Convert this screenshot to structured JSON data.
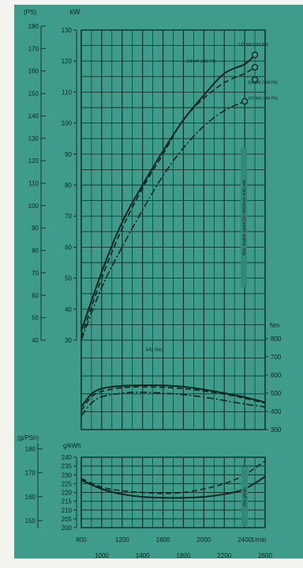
{
  "colors": {
    "background": "#3f9b8a",
    "background_dark": "#348877",
    "grid": "#14352c",
    "curve": "#0e2520",
    "text": "#0e2520",
    "margin": "#f3f3ef"
  },
  "labels": {
    "ps_unit": "(PS)",
    "kw_unit": "kW",
    "nm_unit": "Nm",
    "gkwh_unit": "g/kWh",
    "gpsh_unit": "(g/PSh)",
    "rpm_unit": "1/min",
    "vertical_note": "Max. engine speed (for reference only) see",
    "bsfc_note": "220 g/kWh",
    "torque_peak": "543 Nm",
    "power_1": "121 kW (165 PS)",
    "power_2": "118 kW (160 PS)",
    "power_3": "116 kW (158 PS)",
    "power_4": "107 kW (146 PS)"
  },
  "chart_data": [
    {
      "type": "line",
      "title": "Power",
      "xlabel": "1/min",
      "ylabel": "kW",
      "xlim": [
        800,
        2600
      ],
      "ylim": [
        30,
        130
      ],
      "x_ticks_top": [
        800,
        1200,
        1600,
        2000,
        2400
      ],
      "x_ticks_bottom": [
        1000,
        1400,
        1800,
        2200,
        2600
      ],
      "y_ticks": [
        30,
        40,
        50,
        60,
        70,
        80,
        90,
        100,
        110,
        120,
        130
      ],
      "secondary_axis": {
        "label": "(PS)",
        "ticks": [
          40,
          50,
          60,
          70,
          80,
          90,
          100,
          110,
          120,
          130,
          140,
          150,
          160,
          170,
          180
        ]
      },
      "grid": true,
      "series": [
        {
          "name": "121 kW (165 PS)",
          "style": "solid",
          "x": [
            800,
            1000,
            1200,
            1400,
            1600,
            1800,
            2000,
            2200,
            2400,
            2500
          ],
          "y": [
            33,
            52,
            68,
            80,
            91,
            101,
            109,
            116,
            119,
            122
          ]
        },
        {
          "name": "118 kW (160 PS)",
          "style": "dashed",
          "x": [
            800,
            1000,
            1200,
            1400,
            1600,
            1800,
            2000,
            2200,
            2400,
            2500
          ],
          "y": [
            31,
            50,
            66,
            79,
            90,
            101,
            108,
            113,
            116,
            118
          ]
        },
        {
          "name": "107 kW (146 PS)",
          "style": "dash-dot",
          "x": [
            800,
            1000,
            1200,
            1400,
            1600,
            1800,
            2000,
            2200,
            2400
          ],
          "y": [
            30,
            47,
            60,
            72,
            83,
            92,
            99,
            104,
            107
          ]
        }
      ]
    },
    {
      "type": "line",
      "title": "Torque",
      "ylabel": "Nm",
      "xlim": [
        800,
        2600
      ],
      "ylim": [
        300,
        800
      ],
      "y_ticks": [
        300,
        400,
        500,
        600,
        700,
        800
      ],
      "grid": true,
      "series": [
        {
          "name": "543 Nm",
          "style": "solid",
          "x": [
            800,
            900,
            1000,
            1200,
            1400,
            1600,
            1800,
            2000,
            2200,
            2400,
            2600
          ],
          "y": [
            425,
            495,
            525,
            540,
            543,
            542,
            535,
            520,
            500,
            478,
            450
          ]
        },
        {
          "name": "",
          "style": "dashed",
          "x": [
            800,
            900,
            1000,
            1200,
            1400,
            1600,
            1800,
            2000,
            2200,
            2400,
            2600
          ],
          "y": [
            405,
            480,
            510,
            530,
            535,
            532,
            525,
            512,
            495,
            472,
            445
          ]
        },
        {
          "name": "",
          "style": "dash-dot",
          "x": [
            800,
            900,
            1000,
            1200,
            1400,
            1600,
            1800,
            2000,
            2200,
            2400,
            2600
          ],
          "y": [
            375,
            445,
            480,
            500,
            505,
            500,
            492,
            478,
            460,
            440,
            425
          ]
        }
      ]
    },
    {
      "type": "line",
      "title": "Fuel consumption",
      "ylabel": "g/kWh",
      "xlim": [
        800,
        2600
      ],
      "ylim": [
        200,
        240
      ],
      "y_ticks": [
        200,
        205,
        210,
        215,
        220,
        225,
        230,
        235,
        240
      ],
      "secondary_axis": {
        "label": "(g/PSh)",
        "ticks": [
          150,
          160,
          170,
          180
        ]
      },
      "grid": true,
      "series": [
        {
          "name": "",
          "style": "solid",
          "x": [
            800,
            1000,
            1200,
            1400,
            1600,
            1800,
            2000,
            2200,
            2400,
            2600
          ],
          "y": [
            227,
            222,
            219,
            217.5,
            217,
            217,
            217.5,
            219,
            222,
            229
          ]
        },
        {
          "name": "",
          "style": "dashed",
          "x": [
            800,
            1000,
            1200,
            1400,
            1600,
            1800,
            2000,
            2200,
            2400,
            2600
          ],
          "y": [
            228,
            223,
            221,
            220,
            219.5,
            220,
            222,
            225,
            230,
            238
          ]
        }
      ]
    }
  ]
}
